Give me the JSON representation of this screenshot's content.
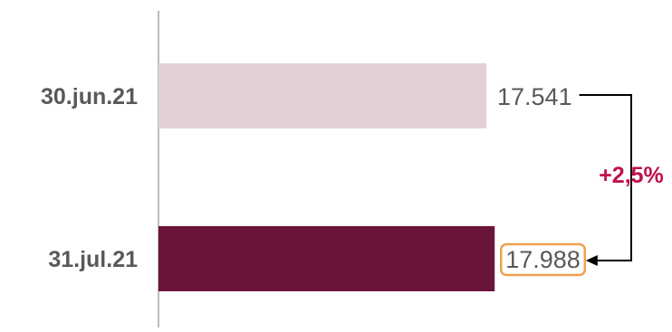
{
  "chart_data": {
    "type": "bar",
    "orientation": "horizontal",
    "categories": [
      "30.jun.21",
      "31.jul.21"
    ],
    "values": [
      17541,
      17988
    ],
    "value_labels": [
      "17.541",
      "17.988"
    ],
    "bar_colors": [
      "#e3d0d6",
      "#6b1439"
    ],
    "highlight_color": "#f0a050",
    "change_label": "+2,5%",
    "change_color": "#c0104a",
    "axis_color": "#a6a6a6",
    "text_color": "#595959",
    "title": "",
    "xlabel": "",
    "ylabel": "",
    "grid": false,
    "legend": "none"
  }
}
